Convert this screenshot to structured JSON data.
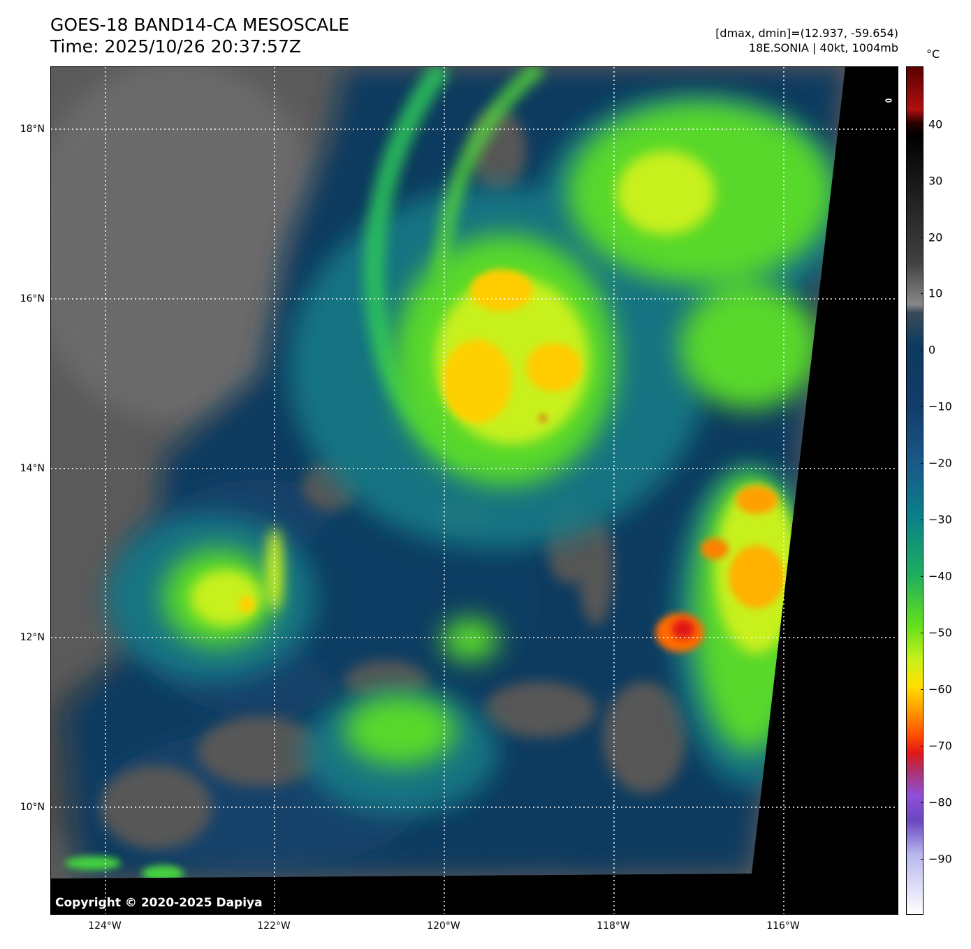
{
  "header": {
    "title_line1": "GOES-18 BAND14-CA MESOSCALE",
    "title_line2": "Time: 2025/10/26 20:37:57Z",
    "range_text": "[dmax, dmin]=(12.937, -59.654)",
    "storm_text": "18E.SONIA | 40kt, 1004mb"
  },
  "map": {
    "copyright": "Copyright © 2020-2025 Dapiya",
    "lat_labels": [
      "18°N",
      "16°N",
      "14°N",
      "12°N",
      "10°N"
    ],
    "lon_labels": [
      "124°W",
      "122°W",
      "120°W",
      "118°W",
      "116°W"
    ],
    "gridlines": "dotted white"
  },
  "colorbar": {
    "unit": "°C",
    "ticks": [
      "40",
      "30",
      "20",
      "10",
      "0",
      "−10",
      "−20",
      "−30",
      "−40",
      "−50",
      "−60",
      "−70",
      "−80",
      "−90"
    ],
    "colors": {
      "warm_max": "#5a0000",
      "clear_gray": "#808080",
      "low_cloud": "#123c6a",
      "mid_cloud": "#0a7f8a",
      "green": "#66e01a",
      "yellow": "#ffe000",
      "orange": "#ff9a00",
      "red": "#e01818",
      "purple": "#9050d8",
      "cold_min": "#ffffff"
    }
  }
}
